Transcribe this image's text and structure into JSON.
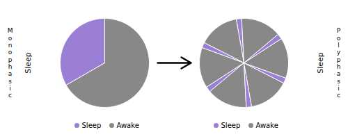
{
  "chart_data": [
    {
      "type": "pie",
      "title": "M\no\nn\no\np\nh\na\ns\ni\nc",
      "annotations": [
        "Sleep"
      ],
      "categories": [
        "Sleep",
        "Awake"
      ],
      "values": [
        120,
        240
      ],
      "colors": [
        "#9b7fd4",
        "#888888"
      ],
      "legend": "bottom"
    },
    {
      "type": "pie",
      "title": "P\no\nl\ny\np\nh\na\ns\ni\nc",
      "annotations": [
        "Sleep"
      ],
      "categories": [
        "Sleep",
        "Awake",
        "Sleep",
        "Awake",
        "Sleep",
        "Awake",
        "Sleep",
        "Awake",
        "Sleep",
        "Awake",
        "Sleep",
        "Awake"
      ],
      "values": [
        7,
        53,
        7,
        53,
        7,
        53,
        7,
        53,
        7,
        53,
        7,
        53
      ],
      "colors": [
        "#9b7fd4",
        "#888888",
        "#9b7fd4",
        "#888888",
        "#9b7fd4",
        "#888888",
        "#9b7fd4",
        "#888888",
        "#9b7fd4",
        "#888888",
        "#9b7fd4",
        "#888888"
      ],
      "legend": "bottom"
    }
  ]
}
